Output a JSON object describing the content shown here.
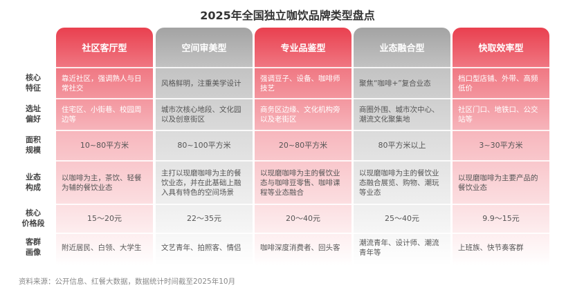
{
  "title": "2025年全国独立咖饮品牌类型盘点",
  "row_labels": [
    "核心\n特征",
    "选址\n偏好",
    "面积\n规模",
    "业态\n构成",
    "核心\n价格段",
    "客群\n画像"
  ],
  "columns": [
    {
      "name": "社区客厅型",
      "style": "red",
      "cells": [
        "靠近社区，强调熟人与日常社交",
        "住宅区、小街巷、校园周边等",
        "10~80平方米",
        "以咖啡为主，茶饮、轻餐为辅的餐饮业态",
        "15～20元",
        "附近居民、白领、大学生"
      ]
    },
    {
      "name": "空间审美型",
      "style": "gray",
      "cells": [
        "风格鲜明，注重美学设计",
        "城市次核心地段、文化园以及创意街区",
        "80~100平方米",
        "主打以现磨咖啡为主的餐饮业态，并在此基础上融入具有特色的空间场景",
        "22～35元",
        "文艺青年、拍照客、情侣"
      ]
    },
    {
      "name": "专业品鉴型",
      "style": "red",
      "cells": [
        "强调豆子、设备、咖啡师技艺",
        "商务区边缘、文化机构旁以及老街区",
        "20~80平方米",
        "以现磨咖啡为主的餐饮业态与咖啡豆零售、咖啡课程等业态融合",
        "20～40元",
        "咖啡深度消费者、回头客"
      ]
    },
    {
      "name": "业态融合型",
      "style": "gray",
      "cells": [
        "聚焦“咖啡+”复合业态",
        "商圈外围、城市次中心、潮流文化聚集地",
        "80平方米以上",
        "以现磨咖啡为主的餐饮业态融合展览、购物、潮玩等业态",
        "25～40元",
        "潮流青年、设计师、潮流青年等"
      ]
    },
    {
      "name": "快取效率型",
      "style": "red",
      "cells": [
        "档口型店铺、外带、高频低价",
        "社区门口、地铁口、公交站等",
        "3~30平方米",
        "以现磨咖啡为主要产品的餐饮业态",
        "9.9～15元",
        "上班族、快节奏客群"
      ]
    }
  ],
  "source": "资料来源：公开信息、红餐大数据，数据统计时间截至2025年10月",
  "colors": {
    "red": "#e9404f",
    "gray": "#a3a3a3"
  }
}
